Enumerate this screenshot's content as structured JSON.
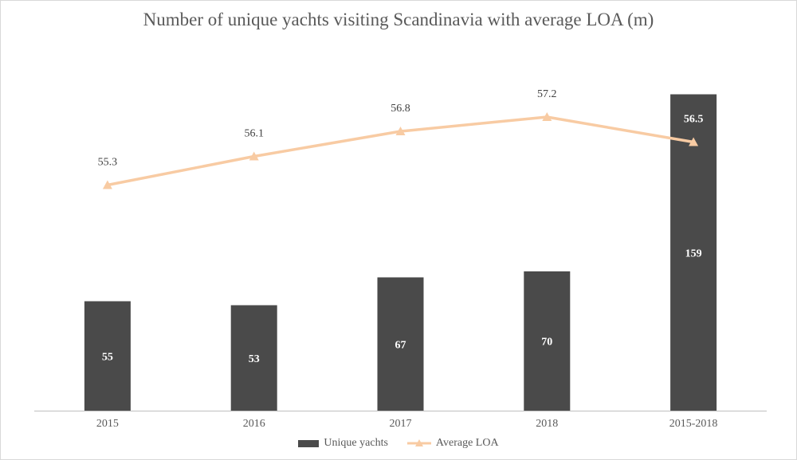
{
  "chart_data": {
    "type": "bar",
    "title": "Number of unique yachts visiting Scandinavia with average LOA (m)",
    "categories": [
      "2015",
      "2016",
      "2017",
      "2018",
      "2015-2018"
    ],
    "series": [
      {
        "name": "Unique yachts",
        "kind": "bar",
        "values": [
          55,
          53,
          67,
          70,
          159
        ],
        "color": "#4a4a4a"
      },
      {
        "name": "Average LOA",
        "kind": "line",
        "marker": "triangle",
        "values": [
          55.3,
          56.1,
          56.8,
          57.2,
          56.5
        ],
        "color": "#f8cba3"
      }
    ],
    "primary_axis": {
      "ylim": [
        0,
        170
      ],
      "visible": false
    },
    "secondary_axis": {
      "ylim": [
        49,
        60
      ],
      "visible": false
    },
    "grid": false,
    "legend": "bottom",
    "data_labels": true
  },
  "colors": {
    "bar": "#4a4a4a",
    "line": "#f8cba3",
    "text": "#595959",
    "axis": "#bfbfbf"
  }
}
